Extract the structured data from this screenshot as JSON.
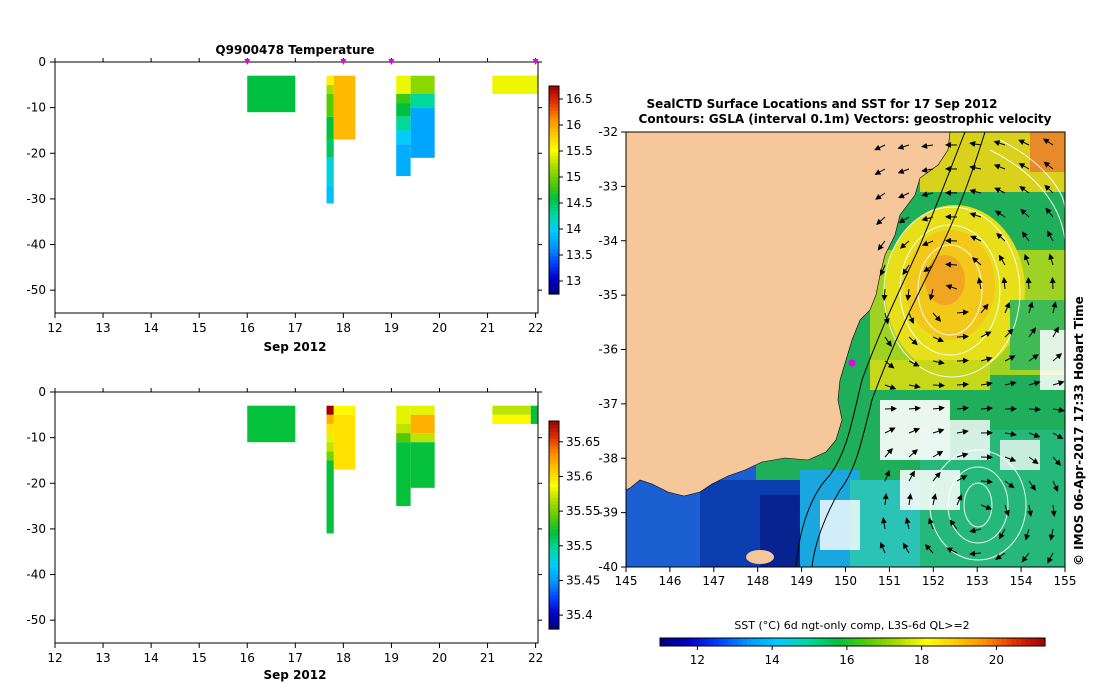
{
  "chart_data": [
    {
      "type": "heatmap",
      "title": "Q9900478  Temperature",
      "xlabel": "Sep 2012",
      "ylabel": "",
      "x_ticks": [
        12,
        13,
        14,
        15,
        16,
        17,
        18,
        19,
        20,
        21,
        22
      ],
      "y_ticks": [
        0,
        -10,
        -20,
        -30,
        -40,
        -50
      ],
      "xlim": [
        12,
        22.05
      ],
      "ylim": [
        -55,
        0
      ],
      "profile_markers_x": [
        16.0,
        18.0,
        19.0,
        22.0
      ],
      "colorbar": {
        "ticks": [
          "16.5",
          "16",
          "15.5",
          "15",
          "14.5",
          "14",
          "13.5",
          "13"
        ],
        "min": 12.75,
        "max": 16.75
      },
      "cells": [
        {
          "x0": 16.0,
          "x1": 17.0,
          "y0": -3,
          "y1": -11,
          "v": 14.6
        },
        {
          "x0": 17.65,
          "x1": 17.8,
          "y0": -3,
          "y1": -5,
          "v": 15.6
        },
        {
          "x0": 17.65,
          "x1": 17.8,
          "y0": -5,
          "y1": -7,
          "v": 15.2
        },
        {
          "x0": 17.65,
          "x1": 17.8,
          "y0": -7,
          "y1": -12,
          "v": 14.9
        },
        {
          "x0": 17.65,
          "x1": 17.8,
          "y0": -12,
          "y1": -17,
          "v": 14.6
        },
        {
          "x0": 17.65,
          "x1": 17.8,
          "y0": -17,
          "y1": -21,
          "v": 14.5
        },
        {
          "x0": 17.65,
          "x1": 17.8,
          "y0": -21,
          "y1": -27,
          "v": 14.1
        },
        {
          "x0": 17.65,
          "x1": 17.8,
          "y0": -27,
          "y1": -31,
          "v": 13.9
        },
        {
          "x0": 17.8,
          "x1": 18.25,
          "y0": -3,
          "y1": -17,
          "v": 15.9
        },
        {
          "x0": 19.1,
          "x1": 19.4,
          "y0": -3,
          "y1": -7,
          "v": 15.45
        },
        {
          "x0": 19.1,
          "x1": 19.4,
          "y0": -7,
          "y1": -9,
          "v": 14.8
        },
        {
          "x0": 19.1,
          "x1": 19.4,
          "y0": -9,
          "y1": -12,
          "v": 14.6
        },
        {
          "x0": 19.1,
          "x1": 19.4,
          "y0": -12,
          "y1": -15,
          "v": 14.3
        },
        {
          "x0": 19.1,
          "x1": 19.4,
          "y0": -15,
          "y1": -18,
          "v": 14.0
        },
        {
          "x0": 19.1,
          "x1": 19.4,
          "y0": -18,
          "y1": -25,
          "v": 13.8
        },
        {
          "x0": 19.4,
          "x1": 19.9,
          "y0": -3,
          "y1": -7,
          "v": 15.1
        },
        {
          "x0": 19.4,
          "x1": 19.9,
          "y0": -7,
          "y1": -10,
          "v": 14.3
        },
        {
          "x0": 19.4,
          "x1": 19.9,
          "y0": -10,
          "y1": -21,
          "v": 13.75
        },
        {
          "x0": 21.1,
          "x1": 22.05,
          "y0": -3,
          "y1": -7,
          "v": 15.45
        }
      ]
    },
    {
      "type": "heatmap",
      "title": "",
      "xlabel": "Sep 2012",
      "ylabel": "",
      "x_ticks": [
        12,
        13,
        14,
        15,
        16,
        17,
        18,
        19,
        20,
        21,
        22
      ],
      "y_ticks": [
        0,
        -10,
        -20,
        -30,
        -40,
        -50
      ],
      "xlim": [
        12,
        22.05
      ],
      "ylim": [
        -55,
        0
      ],
      "colorbar": {
        "ticks": [
          "35.65",
          "35.6",
          "35.55",
          "35.5",
          "35.45",
          "35.4"
        ],
        "min": 35.38,
        "max": 35.68
      },
      "cells": [
        {
          "x0": 16.0,
          "x1": 17.0,
          "y0": -3,
          "y1": -11,
          "v": 35.52
        },
        {
          "x0": 17.65,
          "x1": 17.8,
          "y0": -3,
          "y1": -5,
          "v": 35.68
        },
        {
          "x0": 17.65,
          "x1": 17.8,
          "y0": -5,
          "y1": -7,
          "v": 35.62
        },
        {
          "x0": 17.65,
          "x1": 17.8,
          "y0": -7,
          "y1": -9,
          "v": 35.6
        },
        {
          "x0": 17.65,
          "x1": 17.8,
          "y0": -9,
          "y1": -11,
          "v": 35.58
        },
        {
          "x0": 17.65,
          "x1": 17.8,
          "y0": -11,
          "y1": -13,
          "v": 35.57
        },
        {
          "x0": 17.65,
          "x1": 17.8,
          "y0": -13,
          "y1": -15,
          "v": 35.55
        },
        {
          "x0": 17.65,
          "x1": 17.8,
          "y0": -15,
          "y1": -31,
          "v": 35.52
        },
        {
          "x0": 17.8,
          "x1": 18.25,
          "y0": -3,
          "y1": -5,
          "v": 35.59
        },
        {
          "x0": 17.8,
          "x1": 18.25,
          "y0": -5,
          "y1": -17,
          "v": 35.6
        },
        {
          "x0": 19.1,
          "x1": 19.4,
          "y0": -3,
          "y1": -7,
          "v": 35.58
        },
        {
          "x0": 19.1,
          "x1": 19.4,
          "y0": -7,
          "y1": -9,
          "v": 35.57
        },
        {
          "x0": 19.1,
          "x1": 19.4,
          "y0": -9,
          "y1": -11,
          "v": 35.54
        },
        {
          "x0": 19.1,
          "x1": 19.4,
          "y0": -11,
          "y1": -25,
          "v": 35.52
        },
        {
          "x0": 19.4,
          "x1": 19.9,
          "y0": -3,
          "y1": -5,
          "v": 35.58
        },
        {
          "x0": 19.4,
          "x1": 19.9,
          "y0": -5,
          "y1": -9,
          "v": 35.62
        },
        {
          "x0": 19.4,
          "x1": 19.9,
          "y0": -9,
          "y1": -11,
          "v": 35.57
        },
        {
          "x0": 19.4,
          "x1": 19.9,
          "y0": -11,
          "y1": -21,
          "v": 35.52
        },
        {
          "x0": 21.1,
          "x1": 21.9,
          "y0": -3,
          "y1": -5,
          "v": 35.57
        },
        {
          "x0": 21.1,
          "x1": 21.9,
          "y0": -5,
          "y1": -7,
          "v": 35.59
        },
        {
          "x0": 21.9,
          "x1": 22.05,
          "y0": -3,
          "y1": -7,
          "v": 35.52
        }
      ]
    },
    {
      "type": "heatmap",
      "title": "SealCTD Surface Locations and SST for 17 Sep 2012",
      "subtitle": "Contours: GSLA (interval 0.1m) Vectors: geostrophic velocity",
      "xlabel": "",
      "ylabel": "",
      "x_ticks": [
        145,
        146,
        147,
        148,
        149,
        150,
        151,
        152,
        153,
        154,
        155
      ],
      "y_ticks": [
        -32,
        -33,
        -34,
        -35,
        -36,
        -37,
        -38,
        -39,
        -40
      ],
      "xlim": [
        145,
        155
      ],
      "ylim": [
        -40,
        -32
      ],
      "seal_location": {
        "lon": 150.2,
        "lat": -36.2
      },
      "eddies": [
        {
          "lon": 152.5,
          "lat": -35.0,
          "kind": "warm-core",
          "rotation": "anticlockwise"
        },
        {
          "lon": 153.0,
          "lat": -39.0,
          "kind": "cold-core",
          "rotation": "clockwise"
        }
      ],
      "colorbar": {
        "label": "SST (°C) 6d ngt-only comp, L3S-6d QL>=2",
        "ticks": [
          "12",
          "14",
          "16",
          "18",
          "20"
        ],
        "min": 11.0,
        "max": 21.3
      },
      "credit": "© IMOS 06-Apr-2017 17:33 Hobart Time"
    }
  ],
  "colors": {
    "land": "#f7c79c",
    "missing": "#ffffff",
    "marker": "#e600e6",
    "colormap": [
      "#000080",
      "#0000cc",
      "#0044ff",
      "#0099ff",
      "#00ccff",
      "#00d9a0",
      "#00c040",
      "#55cc00",
      "#aadd00",
      "#ffff00",
      "#ffc800",
      "#ff8c00",
      "#e03000",
      "#a00000"
    ]
  }
}
